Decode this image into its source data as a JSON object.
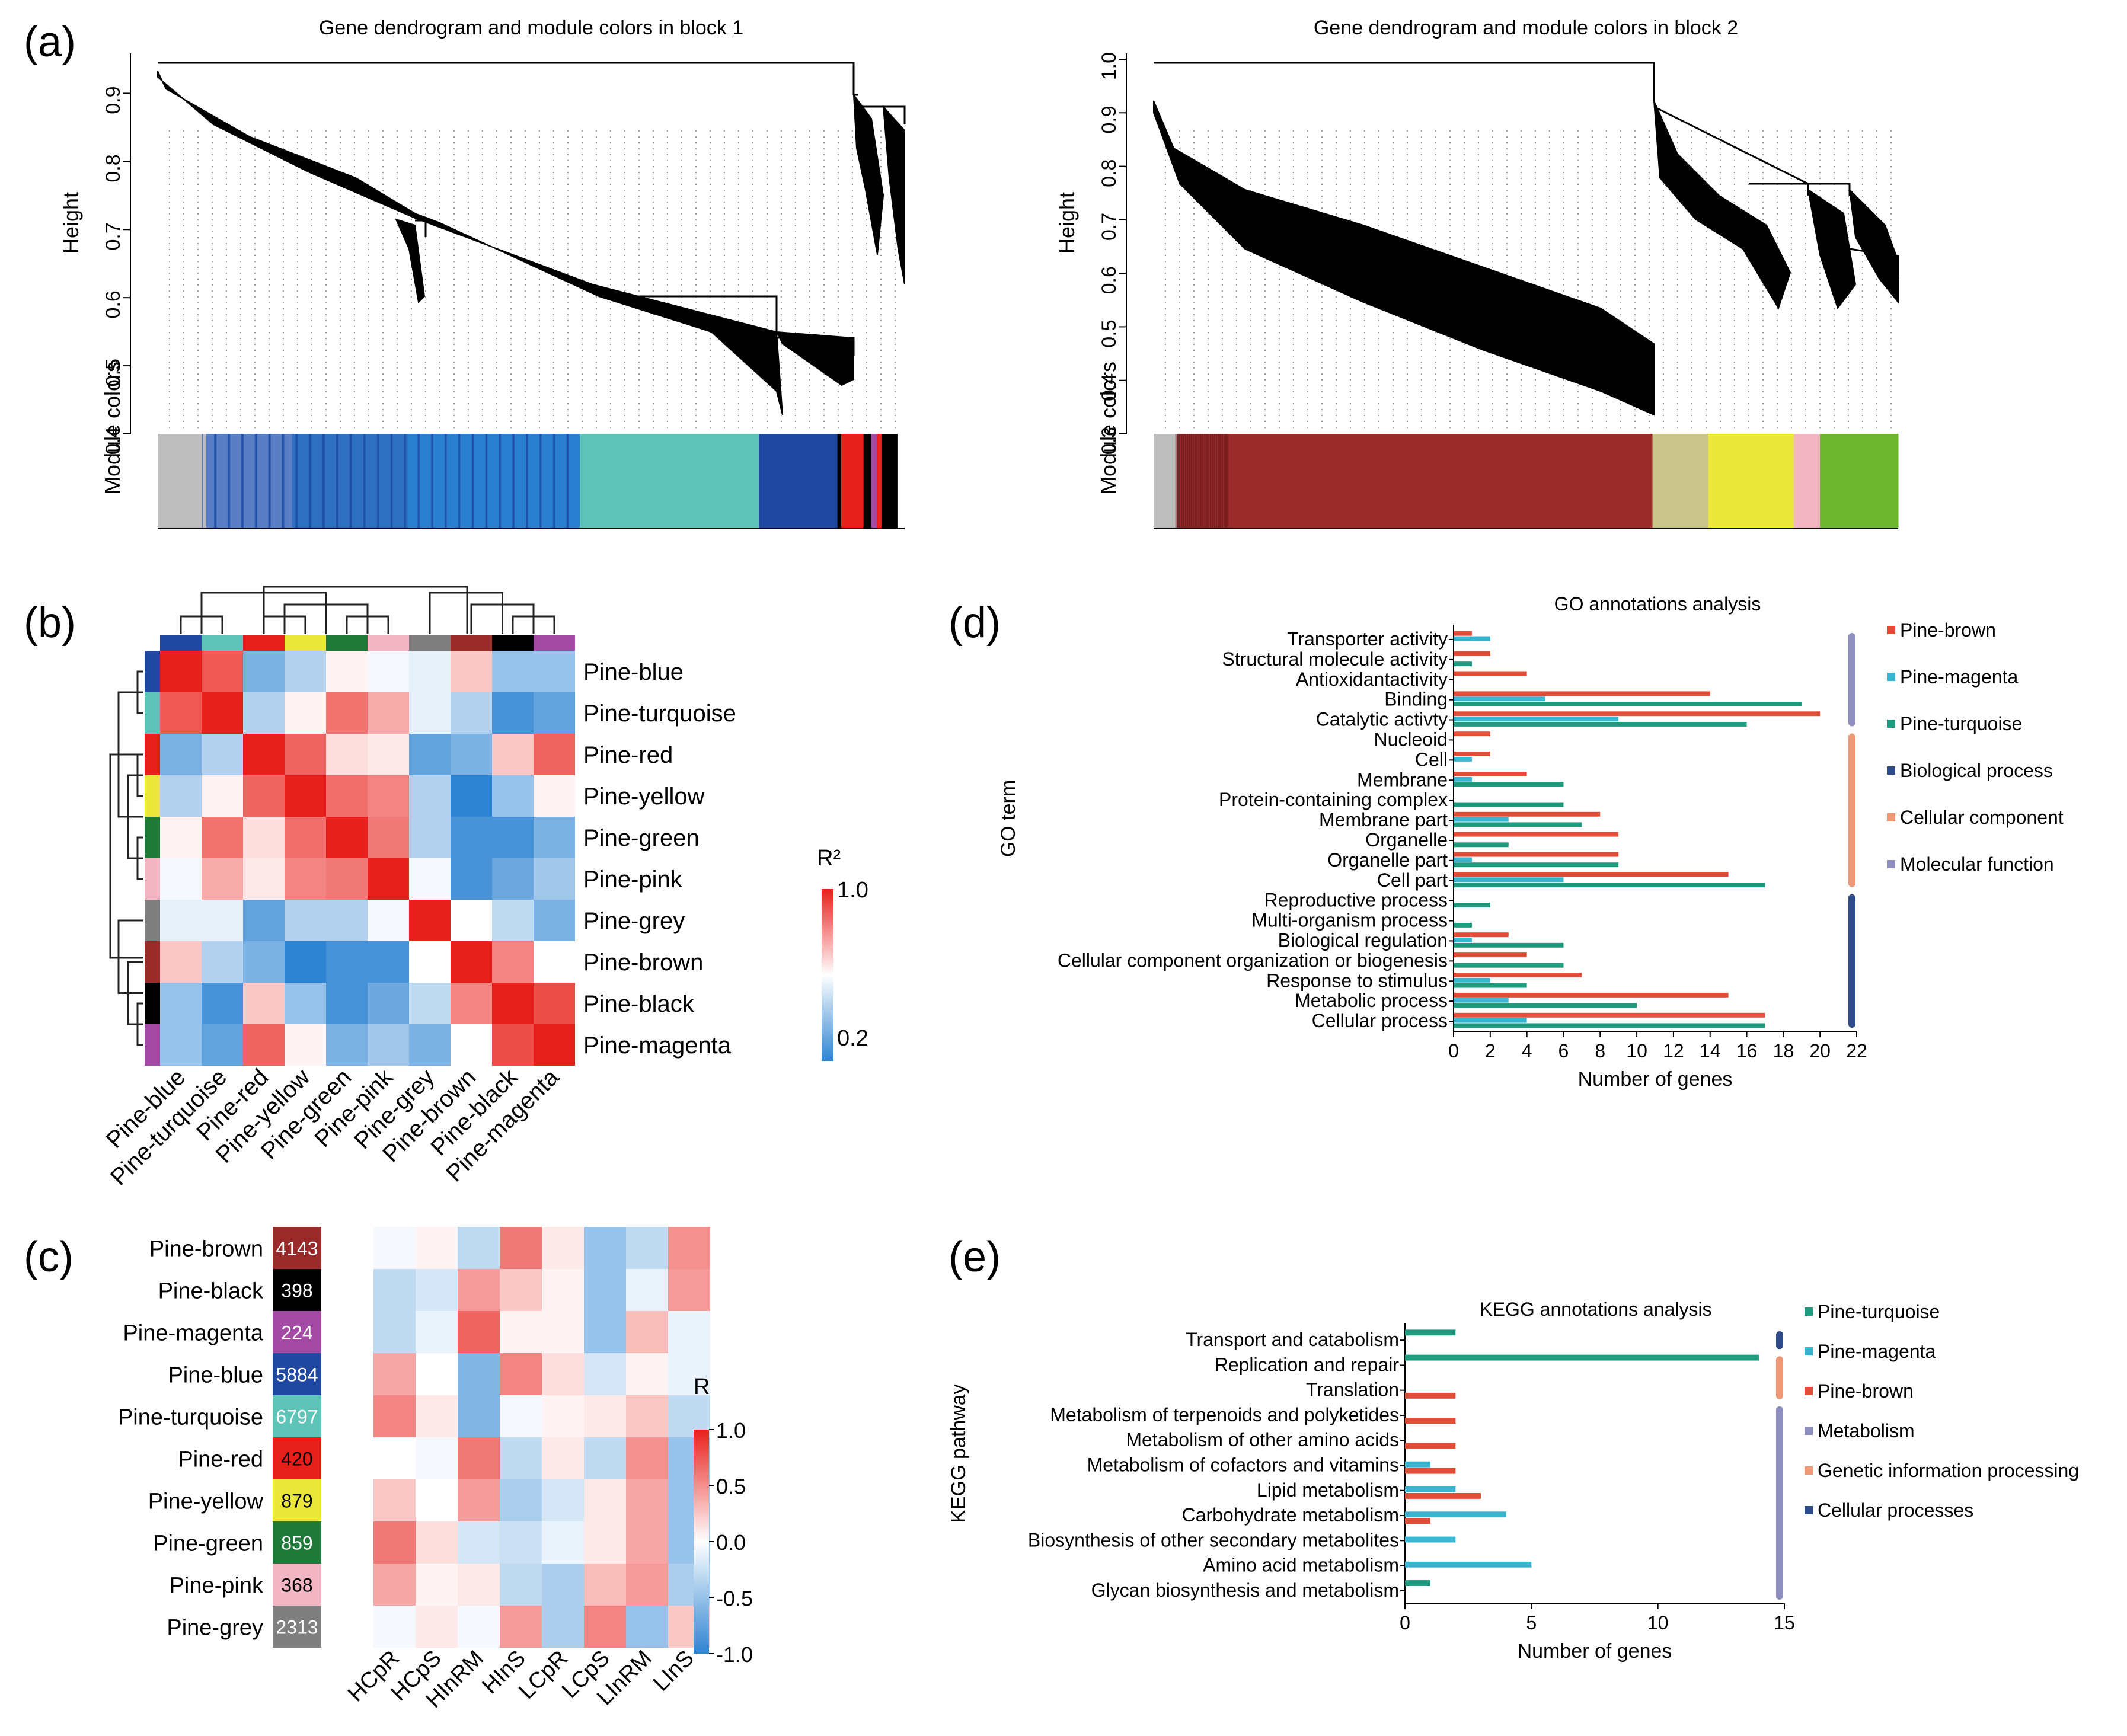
{
  "panel_labels": [
    "(a)",
    "(b)",
    "(c)",
    "(d)",
    "(e)"
  ],
  "chart_data": [
    {
      "id": "a1",
      "type": "dendrogram",
      "title": "Gene dendrogram and module colors in block 1",
      "ylabel": "Height",
      "ylim": [
        0.4,
        0.95
      ],
      "yticks": [
        "0.4",
        "0.5",
        "0.6",
        "0.7",
        "0.8",
        "0.9"
      ],
      "color_bar_label": "Module colors",
      "color_bar_segments": [
        {
          "color": "#bdbdbd",
          "fraction": 0.065
        },
        {
          "color": "#5a7ec4",
          "fraction": 0.115
        },
        {
          "color": "#2f6fc0",
          "fraction": 0.155
        },
        {
          "color": "#2a7fd0",
          "fraction": 0.23
        },
        {
          "color": "#5ec4b8",
          "fraction": 0.24
        },
        {
          "color": "#2148a0",
          "fraction": 0.105
        },
        {
          "color": "#000000",
          "fraction": 0.005
        },
        {
          "color": "#e8201c",
          "fraction": 0.03
        },
        {
          "color": "#000000",
          "fraction": 0.01
        },
        {
          "color": "#a34aa5",
          "fraction": 0.008
        },
        {
          "color": "#e8201c",
          "fraction": 0.006
        },
        {
          "color": "#000000",
          "fraction": 0.021
        }
      ]
    },
    {
      "id": "a2",
      "type": "dendrogram",
      "title": "Gene dendrogram and module colors in block 2",
      "ylabel": "Height",
      "ylim": [
        0.3,
        1.0
      ],
      "yticks": [
        "0.3",
        "0.4",
        "0.5",
        "0.6",
        "0.7",
        "0.8",
        "0.9",
        "1.0"
      ],
      "color_bar_label": "Module colors",
      "color_bar_segments": [
        {
          "color": "#bdbdbd",
          "fraction": 0.035
        },
        {
          "color": "#9b2b2b",
          "fraction": 0.635
        },
        {
          "color": "#c8c48a",
          "fraction": 0.075
        },
        {
          "color": "#ebe83b",
          "fraction": 0.115
        },
        {
          "color": "#f2b5c4",
          "fraction": 0.035
        },
        {
          "color": "#6db52e",
          "fraction": 0.105
        }
      ]
    },
    {
      "id": "b",
      "type": "heatmap",
      "rows": [
        "Pine-blue",
        "Pine-turquoise",
        "Pine-red",
        "Pine-yellow",
        "Pine-green",
        "Pine-pink",
        "Pine-grey",
        "Pine-brown",
        "Pine-black",
        "Pine-magenta"
      ],
      "cols": [
        "Pine-blue",
        "Pine-turquoise",
        "Pine-red",
        "Pine-yellow",
        "Pine-green",
        "Pine-pink",
        "Pine-grey",
        "Pine-brown",
        "Pine-black",
        "Pine-magenta"
      ],
      "module_colors": [
        "#2148a0",
        "#5ec4b8",
        "#e8201c",
        "#ebe83b",
        "#1f7a3a",
        "#f2b5c4",
        "#7f7f7f",
        "#9b2b2b",
        "#000000",
        "#a34aa5"
      ],
      "values": [
        [
          1.0,
          0.9,
          0.35,
          0.45,
          0.62,
          0.58,
          0.55,
          0.7,
          0.4,
          0.4
        ],
        [
          0.9,
          1.0,
          0.45,
          0.62,
          0.85,
          0.75,
          0.55,
          0.45,
          0.25,
          0.3
        ],
        [
          0.35,
          0.45,
          1.0,
          0.88,
          0.66,
          0.64,
          0.3,
          0.35,
          0.7,
          0.88
        ],
        [
          0.45,
          0.62,
          0.88,
          1.0,
          0.86,
          0.82,
          0.45,
          0.2,
          0.4,
          0.62
        ],
        [
          0.62,
          0.85,
          0.66,
          0.86,
          1.0,
          0.84,
          0.45,
          0.25,
          0.25,
          0.35
        ],
        [
          0.58,
          0.75,
          0.64,
          0.82,
          0.84,
          1.0,
          0.58,
          0.25,
          0.32,
          0.42
        ],
        [
          0.55,
          0.55,
          0.3,
          0.45,
          0.45,
          0.58,
          1.0,
          0.6,
          0.48,
          0.35
        ],
        [
          0.7,
          0.45,
          0.35,
          0.2,
          0.25,
          0.25,
          0.6,
          1.0,
          0.82,
          0.6
        ],
        [
          0.4,
          0.25,
          0.7,
          0.4,
          0.25,
          0.32,
          0.48,
          0.82,
          1.0,
          0.92
        ],
        [
          0.4,
          0.3,
          0.88,
          0.62,
          0.35,
          0.42,
          0.35,
          0.6,
          0.92,
          1.0
        ]
      ],
      "legend_title": "R²",
      "legend_ticks": [
        "1.0",
        "0.2"
      ],
      "legend_range": [
        0.2,
        1.0
      ]
    },
    {
      "id": "c",
      "type": "heatmap",
      "rows": [
        "Pine-brown",
        "Pine-black",
        "Pine-magenta",
        "Pine-blue",
        "Pine-turquoise",
        "Pine-red",
        "Pine-yellow",
        "Pine-green",
        "Pine-pink",
        "Pine-grey"
      ],
      "row_counts": [
        "4143",
        "398",
        "224",
        "5884",
        "6797",
        "420",
        "879",
        "859",
        "368",
        "2313"
      ],
      "row_colors": [
        "#9b2b2b",
        "#000000",
        "#a34aa5",
        "#2148a0",
        "#5ec4b8",
        "#e8201c",
        "#ebe83b",
        "#1f7a3a",
        "#f2b5c4",
        "#7f7f7f"
      ],
      "count_text_colors": [
        "#ffffff",
        "#ffffff",
        "#ffffff",
        "#ffffff",
        "#ffffff",
        "#000000",
        "#000000",
        "#ffffff",
        "#000000",
        "#ffffff"
      ],
      "cols": [
        "HCpR",
        "HCpS",
        "HInRM",
        "HInS",
        "LCpR",
        "LCpS",
        "LInRM",
        "LInS"
      ],
      "values": [
        [
          -0.05,
          0.05,
          -0.3,
          0.6,
          0.1,
          -0.5,
          -0.3,
          0.5
        ],
        [
          -0.3,
          -0.2,
          0.45,
          0.25,
          0.05,
          -0.5,
          -0.1,
          0.45
        ],
        [
          -0.3,
          -0.1,
          0.7,
          0.05,
          0.05,
          -0.5,
          0.3,
          -0.1
        ],
        [
          0.4,
          0.0,
          -0.6,
          0.55,
          0.15,
          -0.2,
          0.05,
          -0.1
        ],
        [
          0.55,
          0.1,
          -0.6,
          -0.05,
          0.05,
          0.1,
          0.25,
          -0.3
        ],
        [
          0.0,
          -0.05,
          0.6,
          -0.3,
          0.1,
          -0.3,
          0.5,
          -0.5
        ],
        [
          0.25,
          0.0,
          0.45,
          -0.4,
          -0.2,
          0.1,
          0.4,
          -0.5
        ],
        [
          0.6,
          0.15,
          -0.2,
          -0.25,
          -0.1,
          0.1,
          0.4,
          -0.5
        ],
        [
          0.4,
          0.05,
          0.1,
          -0.3,
          -0.4,
          0.3,
          0.45,
          -0.4
        ],
        [
          -0.05,
          0.1,
          -0.05,
          0.45,
          -0.4,
          0.55,
          -0.5,
          0.25
        ]
      ],
      "legend_title": "R",
      "legend_ticks": [
        "1.0",
        "0.5",
        "0.0",
        "-0.5",
        "-1.0"
      ],
      "legend_range": [
        -1.0,
        1.0
      ]
    },
    {
      "id": "d",
      "type": "bar",
      "orientation": "horizontal",
      "title": "GO annotations analysis",
      "xlabel": "Number of genes",
      "ylabel": "GO term",
      "xlim": [
        0,
        22
      ],
      "xticks": [
        "0",
        "2",
        "4",
        "6",
        "8",
        "10",
        "12",
        "14",
        "16",
        "18",
        "20",
        "22"
      ],
      "categories": [
        "Transporter activity",
        "Structural molecule activity",
        "Antioxidantactivity",
        "Binding",
        "Catalytic activty",
        "Nucleoid",
        "Cell",
        "Membrane",
        "Protein-containing complex",
        "Membrane part",
        "Organelle",
        "Organelle part",
        "Cell part",
        "Reproductive process",
        "Multi-organism process",
        "Biological regulation",
        "Cellular component organization or biogenesis",
        "Response to stimulus",
        "Metabolic process",
        "Cellular process"
      ],
      "series": [
        {
          "name": "Pine-brown",
          "color": "#e04e3a",
          "values": [
            1,
            2,
            4,
            14,
            20,
            2,
            2,
            4,
            0,
            8,
            9,
            9,
            15,
            0,
            0,
            3,
            4,
            7,
            15,
            17
          ]
        },
        {
          "name": "Pine-magenta",
          "color": "#3ab5d0",
          "values": [
            2,
            0,
            0,
            5,
            9,
            0,
            1,
            1,
            0,
            3,
            0,
            1,
            6,
            0,
            0,
            1,
            0,
            2,
            3,
            4
          ]
        },
        {
          "name": "Pine-turquoise",
          "color": "#1f9a7e",
          "values": [
            0,
            1,
            0,
            19,
            16,
            0,
            0,
            6,
            6,
            7,
            3,
            9,
            17,
            2,
            1,
            6,
            6,
            4,
            10,
            17
          ]
        }
      ],
      "groups": [
        {
          "name": "Molecular function",
          "color": "#8e8fbe",
          "from": 0,
          "to": 4
        },
        {
          "name": "Cellular component",
          "color": "#ee9878",
          "from": 5,
          "to": 12
        },
        {
          "name": "Biological process",
          "color": "#2f4b8a",
          "from": 13,
          "to": 19
        }
      ],
      "legend": [
        {
          "label": "Pine-brown",
          "color": "#e04e3a"
        },
        {
          "label": "Pine-magenta",
          "color": "#3ab5d0"
        },
        {
          "label": "Pine-turquoise",
          "color": "#1f9a7e"
        },
        {
          "label": "Biological process",
          "color": "#2f4b8a"
        },
        {
          "label": "Cellular component",
          "color": "#ee9878"
        },
        {
          "label": "Molecular function",
          "color": "#8e8fbe"
        }
      ]
    },
    {
      "id": "e",
      "type": "bar",
      "orientation": "horizontal",
      "title": "KEGG annotations analysis",
      "xlabel": "Number of genes",
      "ylabel": "KEGG pathway",
      "xlim": [
        0,
        15
      ],
      "xticks": [
        "0",
        "5",
        "10",
        "15"
      ],
      "categories": [
        "Transport and catabolism",
        "Replication and repair",
        "Translation",
        "Metabolism of terpenoids and polyketides",
        "Metabolism of other amino acids",
        "Metabolism of cofactors and vitamins",
        "Lipid metabolism",
        "Carbohydrate metabolism",
        "Biosynthesis of other secondary metabolites",
        "Amino acid metabolism",
        "Glycan biosynthesis and metabolism"
      ],
      "series": [
        {
          "name": "Pine-turquoise",
          "color": "#1f9a7e",
          "values": [
            2,
            14,
            0,
            0,
            0,
            0,
            0,
            0,
            0,
            0,
            1
          ]
        },
        {
          "name": "Pine-magenta",
          "color": "#3ab5d0",
          "values": [
            0,
            0,
            0,
            0,
            0,
            1,
            2,
            4,
            2,
            5,
            0
          ]
        },
        {
          "name": "Pine-brown",
          "color": "#e04e3a",
          "values": [
            0,
            0,
            2,
            2,
            2,
            2,
            3,
            1,
            0,
            0,
            0
          ]
        }
      ],
      "groups": [
        {
          "name": "Cellular processes",
          "color": "#2f4b8a",
          "from": 0,
          "to": 0
        },
        {
          "name": "Genetic information processing",
          "color": "#ee9878",
          "from": 1,
          "to": 2
        },
        {
          "name": "Metabolism",
          "color": "#8e8fbe",
          "from": 3,
          "to": 10
        }
      ],
      "legend": [
        {
          "label": "Pine-turquoise",
          "color": "#1f9a7e"
        },
        {
          "label": "Pine-magenta",
          "color": "#3ab5d0"
        },
        {
          "label": "Pine-brown",
          "color": "#e04e3a"
        },
        {
          "label": "Metabolism",
          "color": "#8e8fbe"
        },
        {
          "label": "Genetic information processing",
          "color": "#ee9878"
        },
        {
          "label": "Cellular processes",
          "color": "#2f4b8a"
        }
      ]
    }
  ]
}
